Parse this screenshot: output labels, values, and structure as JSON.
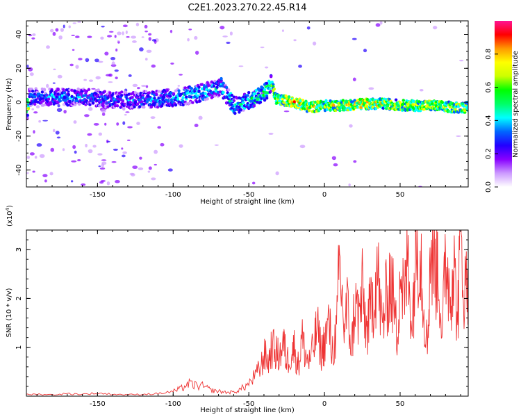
{
  "chart_data": [
    {
      "type": "heatmap",
      "title": "C2E1.2023.270.22.45.R14",
      "xlabel": "Height of straight line (km)",
      "ylabel": "Frequency (Hz)",
      "xlim": [
        -197,
        95
      ],
      "ylim": [
        -50,
        48
      ],
      "xticks": [
        -150,
        -100,
        -50,
        0,
        50
      ],
      "yticks": [
        40,
        20,
        0,
        -20,
        -40
      ],
      "colorbar": {
        "label": "Normalized spectral amplitude",
        "ticks": [
          "0.0",
          "0.2",
          "0.4",
          "0.6",
          "0.8"
        ],
        "range": [
          0,
          1
        ],
        "colors": [
          "#ffffff",
          "#cc99ff",
          "#8800ff",
          "#2200ff",
          "#0066ff",
          "#00ffff",
          "#00ff66",
          "#00ff00",
          "#ccff00",
          "#ffff00",
          "#ff9900",
          "#ff0000",
          "#ff1493"
        ]
      },
      "ridge": [
        {
          "x": -195,
          "y": 3,
          "amp": 0.35
        },
        {
          "x": -175,
          "y": 3,
          "amp": 0.4
        },
        {
          "x": -155,
          "y": 3,
          "amp": 0.35
        },
        {
          "x": -140,
          "y": 1,
          "amp": 0.35
        },
        {
          "x": -125,
          "y": 1,
          "amp": 0.35
        },
        {
          "x": -110,
          "y": 2,
          "amp": 0.4
        },
        {
          "x": -95,
          "y": 3,
          "amp": 0.45
        },
        {
          "x": -80,
          "y": 6,
          "amp": 0.45
        },
        {
          "x": -68,
          "y": 9,
          "amp": 0.45
        },
        {
          "x": -60,
          "y": -2,
          "amp": 0.5
        },
        {
          "x": -50,
          "y": 1,
          "amp": 0.5
        },
        {
          "x": -40,
          "y": 5,
          "amp": 0.55
        },
        {
          "x": -35,
          "y": 11,
          "amp": 0.55
        },
        {
          "x": -32,
          "y": 2,
          "amp": 0.7
        },
        {
          "x": -20,
          "y": 0,
          "amp": 0.8
        },
        {
          "x": -10,
          "y": -3,
          "amp": 0.75
        },
        {
          "x": 0,
          "y": -2,
          "amp": 0.7
        },
        {
          "x": 10,
          "y": -2,
          "amp": 0.7
        },
        {
          "x": 25,
          "y": -1,
          "amp": 0.8
        },
        {
          "x": 40,
          "y": -1,
          "amp": 0.7
        },
        {
          "x": 55,
          "y": -2,
          "amp": 0.7
        },
        {
          "x": 70,
          "y": -2,
          "amp": 0.7
        },
        {
          "x": 85,
          "y": -3,
          "amp": 0.7
        },
        {
          "x": 95,
          "y": -3,
          "amp": 0.65
        }
      ]
    },
    {
      "type": "line",
      "xlabel": "Height of straight line (km)",
      "ylabel": "SNR (10 * v/v)",
      "yscale_label": "(x10",
      "yscale_exp": "4",
      "yscale_close": ")",
      "xlim": [
        -197,
        95
      ],
      "ylim": [
        0,
        3.4
      ],
      "xticks": [
        -150,
        -100,
        -50,
        0,
        50
      ],
      "yticks": [
        1,
        2,
        3
      ],
      "color": "#ee3333",
      "series": [
        {
          "x": [
            -197,
            -190,
            -180,
            -170,
            -160,
            -150,
            -140,
            -130,
            -120,
            -110,
            -100,
            -95,
            -90,
            -85,
            -80,
            -75,
            -70,
            -65,
            -60,
            -55,
            -50,
            -45,
            -42,
            -40,
            -37,
            -35,
            -32,
            -30,
            -27,
            -25,
            -22,
            -20,
            -17,
            -15,
            -12,
            -10,
            -7,
            -5,
            -2,
            0,
            3,
            5,
            8,
            10,
            13,
            15,
            18,
            20,
            23,
            25,
            28,
            30,
            33,
            35,
            38,
            40,
            43,
            45,
            48,
            50,
            53,
            55,
            58,
            60,
            63,
            65,
            68,
            70,
            73,
            75,
            78,
            80,
            83,
            85,
            88,
            90,
            93,
            95
          ],
          "y": [
            0.03,
            0.04,
            0.03,
            0.05,
            0.04,
            0.06,
            0.04,
            0.03,
            0.04,
            0.05,
            0.1,
            0.15,
            0.25,
            0.22,
            0.2,
            0.12,
            0.1,
            0.08,
            0.08,
            0.15,
            0.25,
            0.45,
            0.6,
            0.85,
            0.7,
            1.0,
            0.9,
            0.8,
            1.1,
            0.7,
            0.9,
            1.0,
            0.6,
            1.2,
            0.8,
            0.7,
            1.0,
            1.4,
            0.9,
            1.1,
            1.5,
            0.9,
            1.3,
            2.7,
            1.4,
            1.8,
            1.0,
            1.9,
            1.6,
            2.1,
            1.3,
            1.7,
            2.2,
            2.6,
            1.4,
            1.8,
            2.4,
            2.1,
            1.2,
            2.6,
            1.9,
            2.9,
            1.5,
            2.8,
            3.4,
            2.2,
            1.0,
            3.0,
            2.6,
            2.8,
            1.2,
            3.1,
            2.0,
            2.8,
            1.6,
            3.3,
            2.1,
            2.7
          ]
        }
      ]
    }
  ]
}
